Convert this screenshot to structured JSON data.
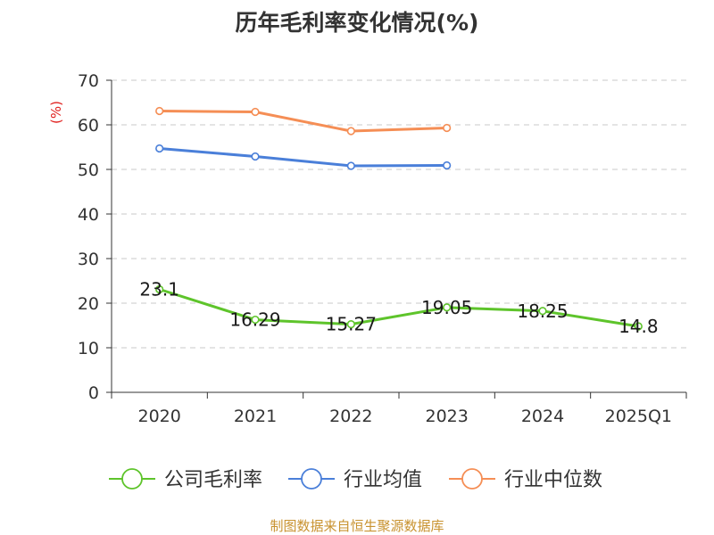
{
  "chart_data": {
    "type": "line",
    "title": "历年毛利率变化情况(%)",
    "ylabel": "(%)",
    "xlabel": "",
    "categories": [
      "2020",
      "2021",
      "2022",
      "2023",
      "2024",
      "2025Q1"
    ],
    "ylim": [
      0,
      70
    ],
    "yticks": [
      0,
      10,
      20,
      30,
      40,
      50,
      60,
      70
    ],
    "grid": "horizontal dashed",
    "legend_position": "bottom",
    "series": [
      {
        "name": "公司毛利率",
        "color": "#5ec42b",
        "values": [
          23.1,
          16.29,
          15.27,
          19.05,
          18.25,
          14.8
        ],
        "labels": [
          "23.1",
          "16.29",
          "15.27",
          "19.05",
          "18.25",
          "14.8"
        ]
      },
      {
        "name": "行业均值",
        "color": "#4a7fd9",
        "values": [
          54.7,
          52.9,
          50.8,
          50.9,
          null,
          null
        ]
      },
      {
        "name": "行业中位数",
        "color": "#f58e55",
        "values": [
          63.1,
          62.9,
          58.6,
          59.3,
          null,
          null
        ]
      }
    ]
  },
  "source": "制图数据来自恒生聚源数据库"
}
